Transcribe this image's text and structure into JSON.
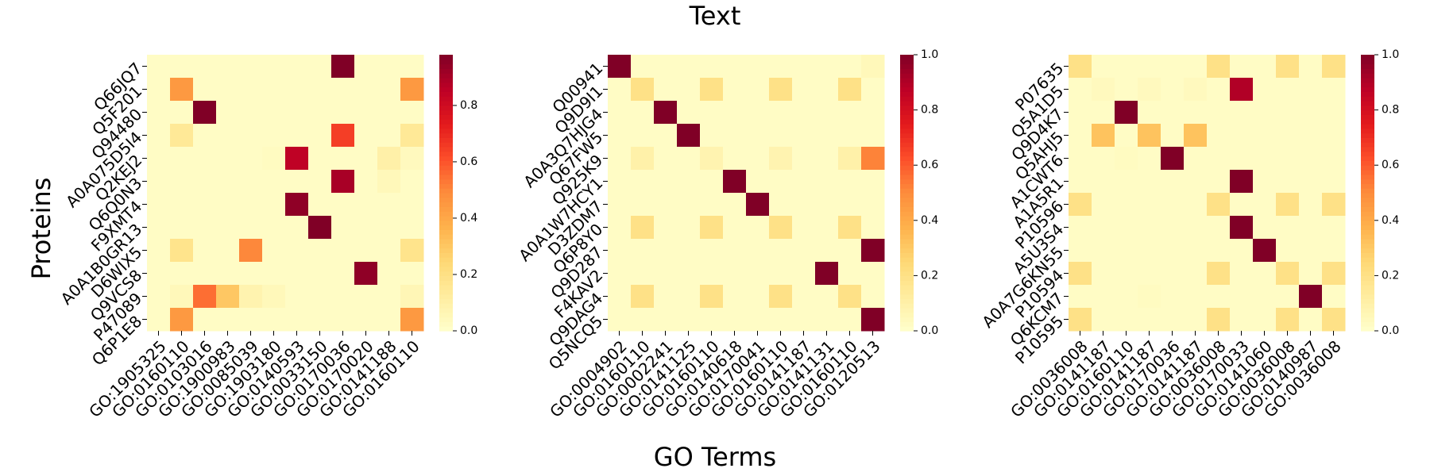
{
  "figure": {
    "title": "Text",
    "xlabel": "GO Terms",
    "ylabel": "Proteins"
  },
  "chart_data": [
    {
      "type": "heatmap",
      "colormap": "YlOrRd",
      "colorbar_ticks": [
        "0.0",
        "0.2",
        "0.4",
        "0.6",
        "0.8"
      ],
      "colorbar_range": [
        0,
        0.98
      ],
      "rows": [
        "Q66JQ7",
        "Q5F201",
        "Q94480",
        "A0A075D5I4",
        "Q2KEJ2",
        "Q6Q0N3",
        "F9XMT4",
        "A0A1B0GR13",
        "D6WIX5",
        "Q9VCS8",
        "P47089",
        "Q6P1E8"
      ],
      "columns": [
        "GO:1905325",
        "GO:0160110",
        "GO:0103016",
        "GO:1900983",
        "GO:0085039",
        "GO:1903180",
        "GO:0140593",
        "GO:0033150",
        "GO:0170036",
        "GO:0170020",
        "GO:0141188",
        "GO:0160110"
      ],
      "values": [
        [
          0.02,
          0.02,
          0.02,
          0.02,
          0.02,
          0.02,
          0.02,
          0.02,
          0.98,
          0.02,
          0.02,
          0.02
        ],
        [
          0.02,
          0.45,
          0.02,
          0.02,
          0.02,
          0.02,
          0.02,
          0.02,
          0.02,
          0.02,
          0.02,
          0.45
        ],
        [
          0.02,
          0.02,
          0.98,
          0.02,
          0.02,
          0.02,
          0.02,
          0.02,
          0.02,
          0.02,
          0.02,
          0.02
        ],
        [
          0.02,
          0.15,
          0.02,
          0.02,
          0.02,
          0.02,
          0.02,
          0.02,
          0.65,
          0.02,
          0.02,
          0.15
        ],
        [
          0.02,
          0.02,
          0.02,
          0.02,
          0.02,
          0.03,
          0.85,
          0.02,
          0.02,
          0.02,
          0.1,
          0.04
        ],
        [
          0.02,
          0.02,
          0.02,
          0.02,
          0.02,
          0.02,
          0.02,
          0.02,
          0.9,
          0.02,
          0.05,
          0.02
        ],
        [
          0.02,
          0.02,
          0.02,
          0.02,
          0.02,
          0.02,
          0.95,
          0.02,
          0.02,
          0.02,
          0.02,
          0.02
        ],
        [
          0.02,
          0.02,
          0.02,
          0.02,
          0.02,
          0.02,
          0.02,
          0.98,
          0.02,
          0.02,
          0.02,
          0.02
        ],
        [
          0.02,
          0.18,
          0.02,
          0.02,
          0.5,
          0.02,
          0.02,
          0.02,
          0.02,
          0.02,
          0.02,
          0.18
        ],
        [
          0.02,
          0.02,
          0.02,
          0.02,
          0.02,
          0.02,
          0.02,
          0.02,
          0.02,
          0.95,
          0.02,
          0.02
        ],
        [
          0.02,
          0.05,
          0.55,
          0.3,
          0.08,
          0.05,
          0.02,
          0.02,
          0.02,
          0.02,
          0.02,
          0.06
        ],
        [
          0.02,
          0.45,
          0.02,
          0.02,
          0.02,
          0.02,
          0.02,
          0.02,
          0.02,
          0.02,
          0.02,
          0.45
        ]
      ]
    },
    {
      "type": "heatmap",
      "colormap": "YlOrRd",
      "colorbar_ticks": [
        "0.0",
        "0.2",
        "0.4",
        "0.6",
        "0.8",
        "1.0"
      ],
      "colorbar_range": [
        0,
        1.0
      ],
      "rows": [
        "Q00941",
        "Q9D9I1",
        "A0A3Q7HJG4",
        "Q67FW5",
        "Q925K9",
        "A0A1W7HCY1",
        "D3ZDM7",
        "Q6P8Y0",
        "Q9D287",
        "F4KAV2",
        "Q9DAG4",
        "Q5NCQ5"
      ],
      "columns": [
        "GO:0004902",
        "GO:0160110",
        "GO:0002241",
        "GO:0141125",
        "GO:0160110",
        "GO:0140618",
        "GO:0170041",
        "GO:0160110",
        "GO:0141187",
        "GO:0141131",
        "GO:0160110",
        "GO:0120513"
      ],
      "values": [
        [
          1.0,
          0.02,
          0.02,
          0.02,
          0.02,
          0.02,
          0.02,
          0.02,
          0.02,
          0.02,
          0.02,
          0.05
        ],
        [
          0.02,
          0.2,
          0.02,
          0.02,
          0.2,
          0.02,
          0.02,
          0.2,
          0.02,
          0.02,
          0.2,
          0.02
        ],
        [
          0.02,
          0.02,
          1.0,
          0.02,
          0.02,
          0.02,
          0.02,
          0.02,
          0.02,
          0.02,
          0.02,
          0.02
        ],
        [
          0.02,
          0.02,
          0.02,
          1.0,
          0.02,
          0.02,
          0.02,
          0.02,
          0.02,
          0.02,
          0.02,
          0.02
        ],
        [
          0.02,
          0.1,
          0.02,
          0.02,
          0.08,
          0.02,
          0.02,
          0.08,
          0.02,
          0.02,
          0.1,
          0.52
        ],
        [
          0.02,
          0.02,
          0.02,
          0.02,
          0.02,
          1.0,
          0.02,
          0.02,
          0.02,
          0.02,
          0.02,
          0.02
        ],
        [
          0.02,
          0.02,
          0.02,
          0.02,
          0.02,
          0.02,
          1.0,
          0.02,
          0.02,
          0.02,
          0.02,
          0.02
        ],
        [
          0.02,
          0.2,
          0.02,
          0.02,
          0.2,
          0.02,
          0.02,
          0.2,
          0.02,
          0.02,
          0.2,
          0.02
        ],
        [
          0.02,
          0.02,
          0.02,
          0.02,
          0.02,
          0.02,
          0.02,
          0.02,
          0.02,
          0.02,
          0.02,
          1.0
        ],
        [
          0.02,
          0.02,
          0.02,
          0.02,
          0.02,
          0.02,
          0.02,
          0.02,
          0.02,
          1.0,
          0.02,
          0.02
        ],
        [
          0.02,
          0.2,
          0.02,
          0.02,
          0.2,
          0.02,
          0.02,
          0.2,
          0.02,
          0.02,
          0.2,
          0.02
        ],
        [
          0.02,
          0.02,
          0.02,
          0.02,
          0.02,
          0.02,
          0.02,
          0.02,
          0.02,
          0.02,
          0.02,
          1.0
        ]
      ]
    },
    {
      "type": "heatmap",
      "colormap": "YlOrRd",
      "colorbar_ticks": [
        "0.0",
        "0.2",
        "0.4",
        "0.6",
        "0.8",
        "1.0"
      ],
      "colorbar_range": [
        0,
        1.0
      ],
      "rows": [
        "P07635",
        "Q5A1D5",
        "Q9D4K7",
        "Q5AHJ5",
        "A1CWT6",
        "A1A5R1",
        "P10596",
        "A5U3S4",
        "A0A7G6KN55",
        "P10594",
        "Q6KCM7",
        "P10595"
      ],
      "columns": [
        "GO:0036008",
        "GO:0141187",
        "GO:0160110",
        "GO:0141187",
        "GO:0170036",
        "GO:0141187",
        "GO:0036008",
        "GO:0170033",
        "GO:0141060",
        "GO:0036008",
        "GO:0140987",
        "GO:0036008"
      ],
      "values": [
        [
          0.2,
          0.02,
          0.02,
          0.02,
          0.02,
          0.02,
          0.2,
          0.02,
          0.02,
          0.2,
          0.02,
          0.2
        ],
        [
          0.02,
          0.04,
          0.02,
          0.04,
          0.02,
          0.04,
          0.02,
          0.9,
          0.02,
          0.02,
          0.02,
          0.02
        ],
        [
          0.02,
          0.02,
          1.0,
          0.02,
          0.02,
          0.02,
          0.02,
          0.02,
          0.02,
          0.02,
          0.02,
          0.02
        ],
        [
          0.02,
          0.32,
          0.02,
          0.32,
          0.02,
          0.32,
          0.02,
          0.02,
          0.02,
          0.02,
          0.02,
          0.02
        ],
        [
          0.02,
          0.02,
          0.03,
          0.02,
          1.0,
          0.02,
          0.02,
          0.02,
          0.02,
          0.02,
          0.02,
          0.02
        ],
        [
          0.02,
          0.02,
          0.02,
          0.02,
          0.02,
          0.02,
          0.02,
          1.0,
          0.02,
          0.02,
          0.02,
          0.02
        ],
        [
          0.2,
          0.02,
          0.02,
          0.02,
          0.02,
          0.02,
          0.2,
          0.02,
          0.02,
          0.2,
          0.02,
          0.2
        ],
        [
          0.02,
          0.02,
          0.02,
          0.02,
          0.02,
          0.02,
          0.02,
          1.0,
          0.02,
          0.02,
          0.02,
          0.02
        ],
        [
          0.02,
          0.02,
          0.02,
          0.02,
          0.02,
          0.02,
          0.02,
          0.02,
          1.0,
          0.02,
          0.02,
          0.02
        ],
        [
          0.2,
          0.02,
          0.02,
          0.02,
          0.02,
          0.02,
          0.2,
          0.02,
          0.02,
          0.2,
          0.02,
          0.2
        ],
        [
          0.02,
          0.02,
          0.02,
          0.03,
          0.02,
          0.02,
          0.02,
          0.02,
          0.02,
          0.02,
          1.0,
          0.02
        ],
        [
          0.2,
          0.02,
          0.02,
          0.02,
          0.02,
          0.02,
          0.2,
          0.02,
          0.02,
          0.2,
          0.02,
          0.2
        ]
      ]
    }
  ]
}
